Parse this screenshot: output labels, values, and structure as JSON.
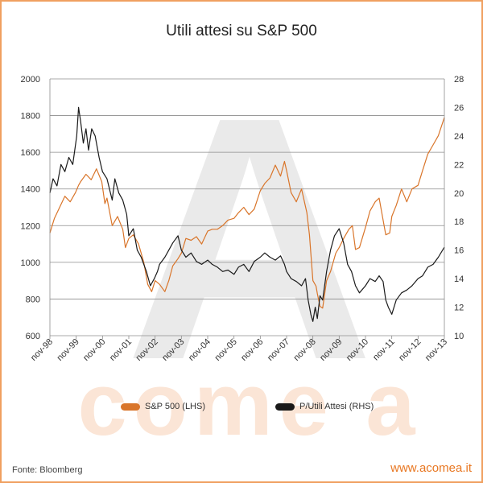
{
  "chart_data": {
    "type": "line",
    "title": "Utili attesi su S&P 500",
    "x_ticks": [
      "nov-98",
      "nov-99",
      "nov-00",
      "nov-01",
      "nov-02",
      "nov-03",
      "nov-04",
      "nov-05",
      "nov-06",
      "nov-07",
      "nov-08",
      "nov-09",
      "nov-10",
      "nov-11",
      "nov-12",
      "nov-13"
    ],
    "x_range": [
      1998.83,
      2013.83
    ],
    "y_left": {
      "ticks": [
        600,
        800,
        1000,
        1200,
        1400,
        1600,
        1800,
        2000
      ],
      "range": [
        600,
        2000
      ]
    },
    "y_right": {
      "ticks": [
        10,
        12,
        14,
        16,
        18,
        20,
        22,
        24,
        26,
        28
      ],
      "range": [
        10,
        28
      ]
    },
    "series": [
      {
        "name": "S&P 500 (LHS)",
        "axis": "left",
        "color": "#d9752a",
        "points": [
          [
            1998.83,
            1160
          ],
          [
            1999.0,
            1240
          ],
          [
            1999.2,
            1300
          ],
          [
            1999.4,
            1360
          ],
          [
            1999.6,
            1330
          ],
          [
            1999.8,
            1380
          ],
          [
            1999.92,
            1420
          ],
          [
            2000.0,
            1440
          ],
          [
            2000.2,
            1480
          ],
          [
            2000.4,
            1450
          ],
          [
            2000.6,
            1510
          ],
          [
            2000.8,
            1440
          ],
          [
            2000.92,
            1320
          ],
          [
            2001.0,
            1350
          ],
          [
            2001.2,
            1200
          ],
          [
            2001.4,
            1250
          ],
          [
            2001.6,
            1180
          ],
          [
            2001.7,
            1080
          ],
          [
            2001.83,
            1130
          ],
          [
            2002.0,
            1150
          ],
          [
            2002.2,
            1100
          ],
          [
            2002.4,
            1000
          ],
          [
            2002.55,
            880
          ],
          [
            2002.7,
            840
          ],
          [
            2002.83,
            900
          ],
          [
            2003.0,
            880
          ],
          [
            2003.2,
            840
          ],
          [
            2003.35,
            900
          ],
          [
            2003.5,
            980
          ],
          [
            2003.7,
            1020
          ],
          [
            2003.83,
            1050
          ],
          [
            2004.0,
            1130
          ],
          [
            2004.2,
            1120
          ],
          [
            2004.4,
            1140
          ],
          [
            2004.6,
            1100
          ],
          [
            2004.83,
            1170
          ],
          [
            2005.0,
            1180
          ],
          [
            2005.2,
            1180
          ],
          [
            2005.4,
            1200
          ],
          [
            2005.6,
            1230
          ],
          [
            2005.83,
            1240
          ],
          [
            2006.0,
            1270
          ],
          [
            2006.2,
            1300
          ],
          [
            2006.4,
            1260
          ],
          [
            2006.6,
            1290
          ],
          [
            2006.83,
            1390
          ],
          [
            2007.0,
            1430
          ],
          [
            2007.2,
            1460
          ],
          [
            2007.4,
            1530
          ],
          [
            2007.6,
            1470
          ],
          [
            2007.75,
            1550
          ],
          [
            2007.83,
            1500
          ],
          [
            2008.0,
            1380
          ],
          [
            2008.2,
            1330
          ],
          [
            2008.4,
            1400
          ],
          [
            2008.6,
            1270
          ],
          [
            2008.7,
            1150
          ],
          [
            2008.83,
            900
          ],
          [
            2008.95,
            870
          ],
          [
            2009.0,
            830
          ],
          [
            2009.1,
            760
          ],
          [
            2009.2,
            750
          ],
          [
            2009.35,
            900
          ],
          [
            2009.5,
            950
          ],
          [
            2009.7,
            1050
          ],
          [
            2009.83,
            1080
          ],
          [
            2010.0,
            1130
          ],
          [
            2010.2,
            1180
          ],
          [
            2010.33,
            1200
          ],
          [
            2010.45,
            1070
          ],
          [
            2010.6,
            1080
          ],
          [
            2010.83,
            1190
          ],
          [
            2011.0,
            1280
          ],
          [
            2011.2,
            1330
          ],
          [
            2011.35,
            1350
          ],
          [
            2011.6,
            1150
          ],
          [
            2011.75,
            1160
          ],
          [
            2011.83,
            1250
          ],
          [
            2012.0,
            1310
          ],
          [
            2012.2,
            1400
          ],
          [
            2012.4,
            1330
          ],
          [
            2012.6,
            1400
          ],
          [
            2012.83,
            1420
          ],
          [
            2013.0,
            1500
          ],
          [
            2013.2,
            1590
          ],
          [
            2013.4,
            1640
          ],
          [
            2013.6,
            1690
          ],
          [
            2013.83,
            1790
          ]
        ]
      },
      {
        "name": "P/Utili Attesi (RHS)",
        "axis": "right",
        "color": "#1a1a1a",
        "points": [
          [
            1998.83,
            20.0
          ],
          [
            1998.95,
            21.0
          ],
          [
            1999.1,
            20.5
          ],
          [
            1999.25,
            22.0
          ],
          [
            1999.4,
            21.5
          ],
          [
            1999.55,
            22.5
          ],
          [
            1999.7,
            22.0
          ],
          [
            1999.85,
            24.0
          ],
          [
            1999.92,
            26.0
          ],
          [
            2000.0,
            25.0
          ],
          [
            2000.1,
            23.5
          ],
          [
            2000.2,
            24.5
          ],
          [
            2000.3,
            23.0
          ],
          [
            2000.42,
            24.5
          ],
          [
            2000.55,
            24.0
          ],
          [
            2000.7,
            22.5
          ],
          [
            2000.83,
            21.5
          ],
          [
            2001.0,
            21.0
          ],
          [
            2001.2,
            19.5
          ],
          [
            2001.3,
            21.0
          ],
          [
            2001.45,
            20.0
          ],
          [
            2001.6,
            19.5
          ],
          [
            2001.75,
            18.5
          ],
          [
            2001.83,
            17.0
          ],
          [
            2002.0,
            17.5
          ],
          [
            2002.15,
            16.0
          ],
          [
            2002.3,
            15.5
          ],
          [
            2002.5,
            14.5
          ],
          [
            2002.65,
            13.5
          ],
          [
            2002.8,
            14.0
          ],
          [
            2002.92,
            14.5
          ],
          [
            2003.0,
            15.0
          ],
          [
            2003.2,
            15.5
          ],
          [
            2003.35,
            16.0
          ],
          [
            2003.5,
            16.5
          ],
          [
            2003.7,
            17.0
          ],
          [
            2003.83,
            16.0
          ],
          [
            2004.0,
            15.5
          ],
          [
            2004.2,
            15.8
          ],
          [
            2004.4,
            15.2
          ],
          [
            2004.6,
            15.0
          ],
          [
            2004.83,
            15.3
          ],
          [
            2005.0,
            15.0
          ],
          [
            2005.2,
            14.8
          ],
          [
            2005.4,
            14.5
          ],
          [
            2005.6,
            14.6
          ],
          [
            2005.83,
            14.3
          ],
          [
            2006.0,
            14.8
          ],
          [
            2006.2,
            15.0
          ],
          [
            2006.4,
            14.5
          ],
          [
            2006.6,
            15.2
          ],
          [
            2006.83,
            15.5
          ],
          [
            2007.0,
            15.8
          ],
          [
            2007.2,
            15.5
          ],
          [
            2007.4,
            15.3
          ],
          [
            2007.6,
            15.6
          ],
          [
            2007.75,
            15.0
          ],
          [
            2007.83,
            14.5
          ],
          [
            2008.0,
            14.0
          ],
          [
            2008.2,
            13.8
          ],
          [
            2008.4,
            13.5
          ],
          [
            2008.55,
            14.0
          ],
          [
            2008.65,
            12.5
          ],
          [
            2008.75,
            11.5
          ],
          [
            2008.83,
            11.0
          ],
          [
            2008.92,
            12.0
          ],
          [
            2009.0,
            11.2
          ],
          [
            2009.1,
            12.8
          ],
          [
            2009.2,
            12.5
          ],
          [
            2009.35,
            14.5
          ],
          [
            2009.5,
            16.0
          ],
          [
            2009.65,
            17.0
          ],
          [
            2009.83,
            17.5
          ],
          [
            2010.0,
            16.5
          ],
          [
            2010.15,
            15.0
          ],
          [
            2010.3,
            14.5
          ],
          [
            2010.45,
            13.5
          ],
          [
            2010.6,
            13.0
          ],
          [
            2010.83,
            13.5
          ],
          [
            2011.0,
            14.0
          ],
          [
            2011.2,
            13.8
          ],
          [
            2011.35,
            14.2
          ],
          [
            2011.5,
            13.8
          ],
          [
            2011.6,
            12.5
          ],
          [
            2011.7,
            12.0
          ],
          [
            2011.83,
            11.5
          ],
          [
            2012.0,
            12.5
          ],
          [
            2012.2,
            13.0
          ],
          [
            2012.4,
            13.2
          ],
          [
            2012.6,
            13.5
          ],
          [
            2012.83,
            14.0
          ],
          [
            2013.0,
            14.2
          ],
          [
            2013.2,
            14.8
          ],
          [
            2013.4,
            15.0
          ],
          [
            2013.6,
            15.5
          ],
          [
            2013.83,
            16.2
          ]
        ]
      }
    ]
  },
  "watermark": {
    "letter": "A",
    "text": "come a",
    "text_color": "#fbe5d6",
    "letter_color": "#d9d9d9"
  },
  "legend": {
    "sp500_label": "S&P 500 (LHS)",
    "pe_label": "P/Utili Attesi (RHS)"
  },
  "footer": {
    "source": "Fonte: Bloomberg",
    "url": "www.acomea.it",
    "url_color": "#e87722"
  }
}
